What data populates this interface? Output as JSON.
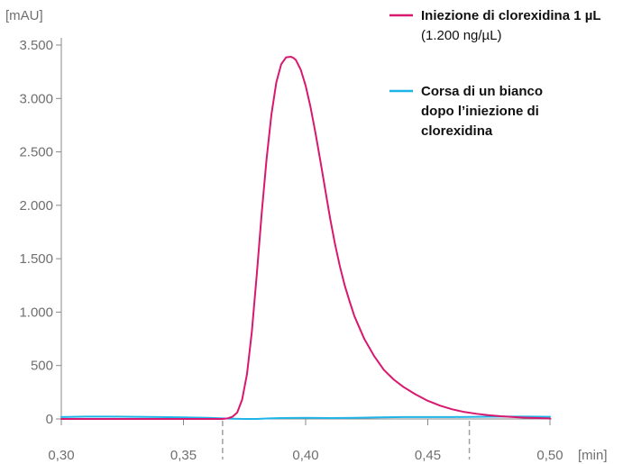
{
  "chart_data": {
    "type": "line",
    "ylabel": "[mAU]",
    "xlabel": "[min]",
    "xlim": [
      0.3,
      0.5
    ],
    "ylim": [
      0,
      3500
    ],
    "x_ticks": [
      0.3,
      0.35,
      0.4,
      0.45,
      0.5
    ],
    "x_tick_labels": [
      "0,30",
      "0,35",
      "0,40",
      "0,45",
      "0,50"
    ],
    "y_ticks": [
      0,
      500,
      1000,
      1500,
      2000,
      2500,
      3000,
      3500
    ],
    "y_tick_labels": [
      "0",
      "500",
      "1.000",
      "1.500",
      "2.000",
      "2.500",
      "3.000",
      "3.500"
    ],
    "grid": false,
    "vertical_reference_lines": [
      0.366,
      0.467
    ],
    "legend_position": "top-right",
    "series": [
      {
        "name": "Iniezione di clorexidina 1 µL",
        "name_line2": "(1.200 ng/µL)",
        "color": "#d8186f",
        "x": [
          0.3,
          0.31,
          0.32,
          0.33,
          0.34,
          0.35,
          0.36,
          0.366,
          0.368,
          0.37,
          0.372,
          0.374,
          0.376,
          0.378,
          0.38,
          0.382,
          0.384,
          0.386,
          0.388,
          0.39,
          0.392,
          0.394,
          0.395,
          0.396,
          0.398,
          0.4,
          0.402,
          0.404,
          0.406,
          0.408,
          0.41,
          0.412,
          0.414,
          0.416,
          0.418,
          0.42,
          0.424,
          0.428,
          0.432,
          0.436,
          0.44,
          0.445,
          0.45,
          0.455,
          0.46,
          0.465,
          0.47,
          0.475,
          0.48,
          0.485,
          0.49,
          0.495,
          0.5
        ],
        "y": [
          0,
          0,
          0,
          0,
          0,
          0,
          0,
          0,
          5,
          20,
          60,
          180,
          420,
          820,
          1350,
          1920,
          2430,
          2850,
          3150,
          3320,
          3385,
          3390,
          3380,
          3360,
          3270,
          3120,
          2920,
          2680,
          2420,
          2150,
          1880,
          1640,
          1430,
          1250,
          1100,
          960,
          750,
          590,
          460,
          370,
          300,
          230,
          170,
          125,
          90,
          65,
          48,
          35,
          25,
          18,
          12,
          8,
          4
        ]
      },
      {
        "name": "Corsa di un bianco",
        "name_line2": "dopo l’iniezione di",
        "name_line3": "clorexidina",
        "color": "#1fb4e8",
        "x": [
          0.3,
          0.31,
          0.32,
          0.33,
          0.34,
          0.35,
          0.36,
          0.366,
          0.37,
          0.375,
          0.38,
          0.385,
          0.39,
          0.4,
          0.41,
          0.42,
          0.43,
          0.44,
          0.45,
          0.46,
          0.47,
          0.48,
          0.49,
          0.5
        ],
        "y": [
          18,
          22,
          22,
          20,
          18,
          15,
          10,
          5,
          2,
          0,
          0,
          5,
          8,
          10,
          8,
          10,
          15,
          18,
          18,
          18,
          20,
          22,
          22,
          20
        ]
      }
    ]
  }
}
